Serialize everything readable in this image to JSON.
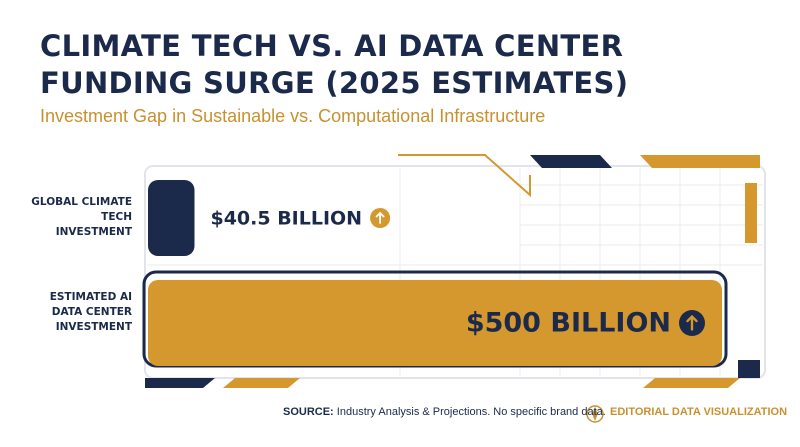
{
  "chart_data": {
    "type": "bar",
    "title": "CLIMATE TECH VS. AI DATA CENTER FUNDING SURGE (2025 ESTIMATES)",
    "subtitle": "Investment Gap in Sustainable vs. Computational Infrastructure",
    "categories": [
      "GLOBAL CLIMATE TECH INVESTMENT",
      "ESTIMATED AI DATA CENTER INVESTMENT"
    ],
    "values": [
      40.5,
      500
    ],
    "value_labels": [
      "$40.5 BILLION",
      "$500 BILLION"
    ],
    "colors": [
      "#1b2a4a",
      "#d4982f"
    ],
    "source_label": "SOURCE:",
    "source": "Industry Analysis & Projections. No specific brand data.",
    "footer": "EDITORIAL DATA VISUALIZATION"
  }
}
